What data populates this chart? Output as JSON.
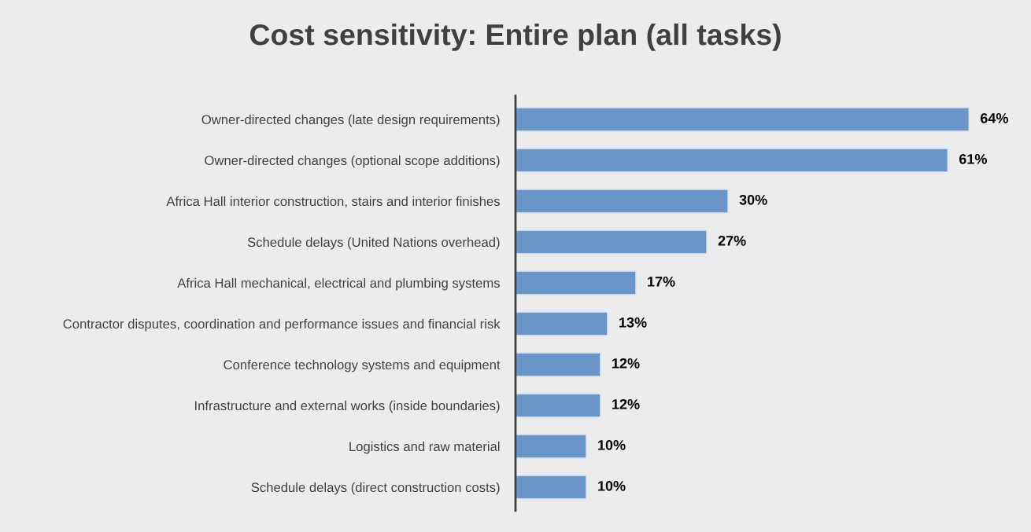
{
  "chart_data": {
    "type": "bar",
    "orientation": "horizontal",
    "title": "Cost sensitivity: Entire plan (all tasks)",
    "categories": [
      "Owner-directed changes (late design requirements)",
      "Owner-directed changes (optional scope additions)",
      "Africa Hall interior construction, stairs and interior finishes",
      "Schedule delays (United Nations overhead)",
      "Africa Hall mechanical, electrical and plumbing systems",
      "Contractor disputes, coordination and performance issues and financial risk",
      "Conference technology systems and equipment",
      "Infrastructure and external works (inside boundaries)",
      "Logistics and raw material",
      "Schedule delays (direct construction costs)"
    ],
    "values": [
      64,
      61,
      30,
      27,
      17,
      13,
      12,
      12,
      10,
      10
    ],
    "value_labels": [
      "64%",
      "61%",
      "30%",
      "27%",
      "17%",
      "13%",
      "12%",
      "12%",
      "10%",
      "10%"
    ],
    "color": "#6a95c8",
    "grid": false,
    "legend": false
  }
}
